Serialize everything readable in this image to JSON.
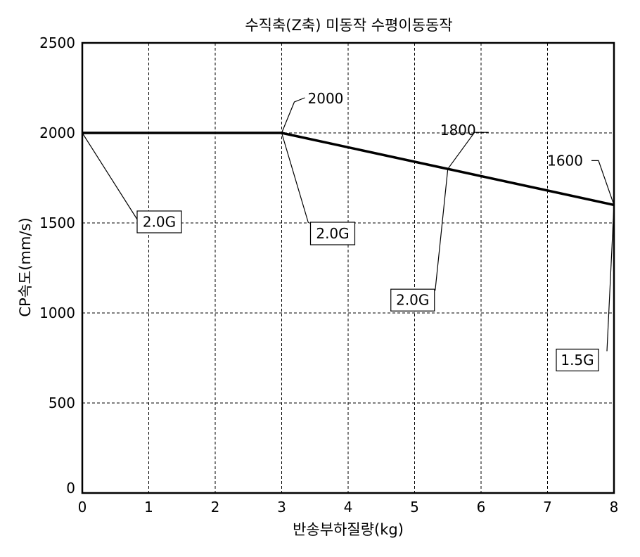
{
  "chart_data": {
    "type": "line",
    "title": "수직축(Z축) 미동작 수평이동동작",
    "xlabel": "반송부하질량(kg)",
    "ylabel": "CP속도(mm/s)",
    "xlim": [
      0,
      8
    ],
    "ylim": [
      0,
      2500
    ],
    "xticks": [
      0,
      1,
      2,
      3,
      4,
      5,
      6,
      7,
      8
    ],
    "yticks": [
      0,
      500,
      1000,
      1500,
      2000,
      2500
    ],
    "grid": true,
    "series": [
      {
        "x": [
          0,
          3,
          8
        ],
        "y": [
          2000,
          2000,
          1600
        ]
      }
    ],
    "value_annotations": [
      {
        "text": "2000",
        "x": 3,
        "y": 2000
      },
      {
        "text": "1800",
        "x": 5.5,
        "y": 1800
      },
      {
        "text": "1600",
        "x": 8,
        "y": 1600
      }
    ],
    "acceleration_annotations": [
      {
        "text": "2.0G",
        "x": 0,
        "y": 2000
      },
      {
        "text": "2.0G",
        "x": 3,
        "y": 2000
      },
      {
        "text": "2.0G",
        "x": 5.5,
        "y": 1800
      },
      {
        "text": "1.5G",
        "x": 8,
        "y": 1600
      }
    ]
  }
}
